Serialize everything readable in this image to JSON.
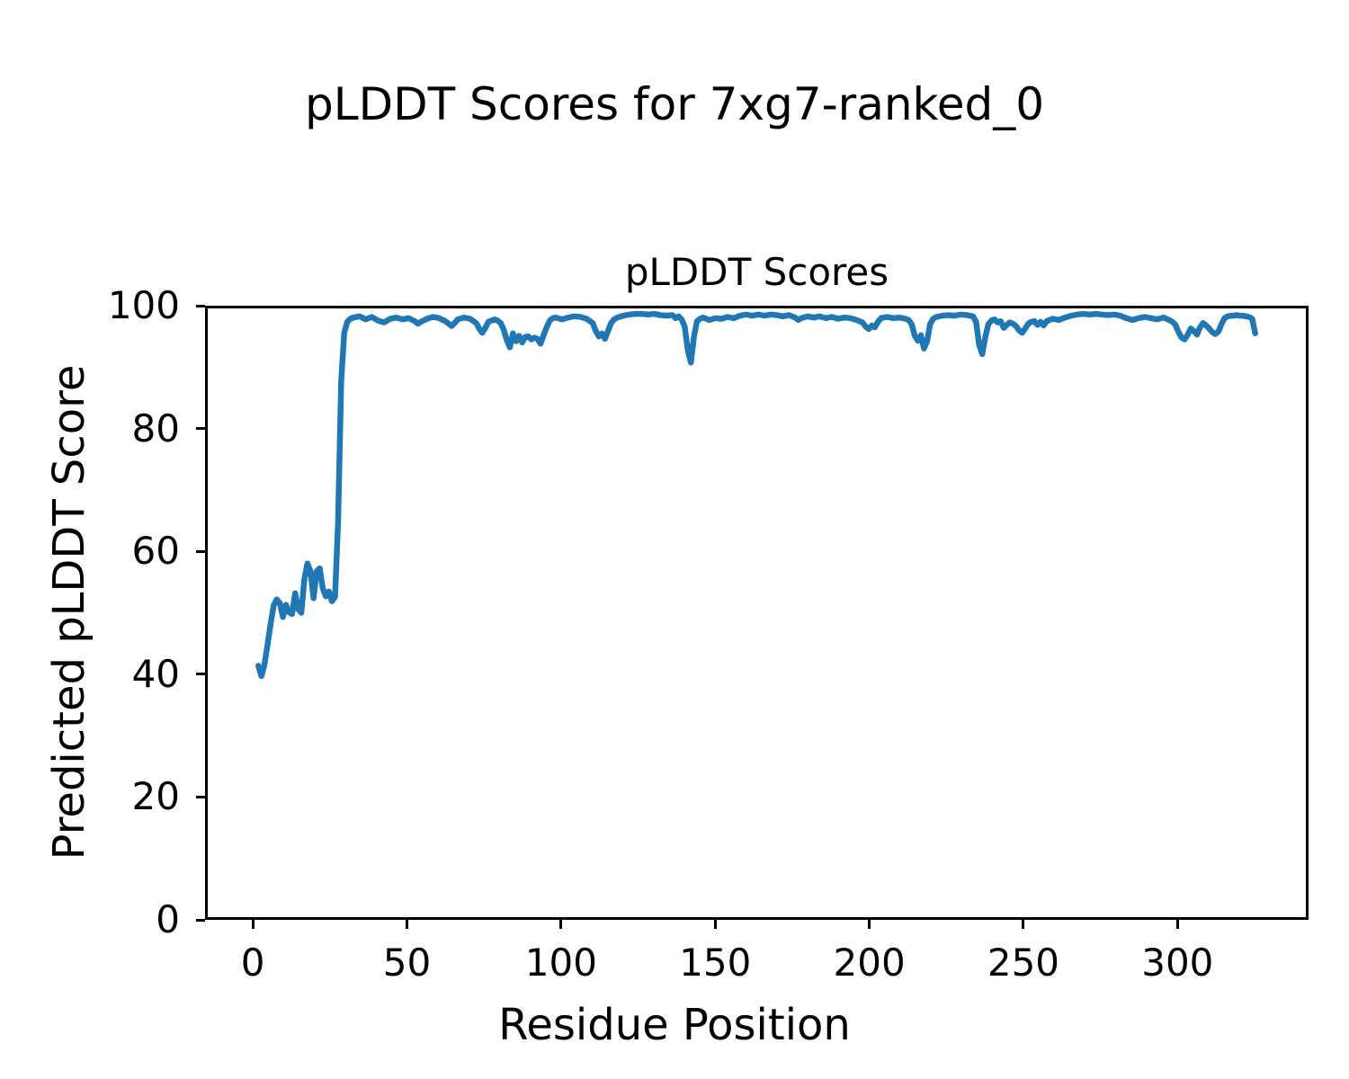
{
  "figure": {
    "title": "pLDDT Scores for 7xg7-ranked_0",
    "background_color": "#ffffff",
    "text_color": "#000000"
  },
  "chart_data": {
    "type": "line",
    "title": "pLDDT Scores",
    "xlabel": "Residue Position",
    "ylabel": "Predicted pLDDT Score",
    "xlim": [
      -15.5,
      342.5
    ],
    "ylim": [
      0,
      100
    ],
    "xticks": [
      0,
      50,
      100,
      150,
      200,
      250,
      300
    ],
    "yticks": [
      0,
      20,
      40,
      60,
      80,
      100
    ],
    "grid": false,
    "legend_position": "none",
    "line_color": "#1f77b4",
    "line_width": 6.5,
    "series": [
      {
        "name": "pLDDT",
        "x": [
          1,
          2,
          3,
          4,
          5,
          6,
          7,
          8,
          9,
          10,
          11,
          12,
          13,
          14,
          15,
          16,
          17,
          18,
          19,
          20,
          21,
          22,
          23,
          24,
          25,
          26,
          27,
          28,
          29,
          30,
          31,
          32,
          34,
          36,
          38,
          40,
          42,
          44,
          46,
          48,
          50,
          52,
          53,
          54,
          56,
          58,
          60,
          62,
          64,
          65,
          66,
          68,
          70,
          72,
          73,
          74,
          75,
          76,
          78,
          79,
          80,
          81,
          82,
          83,
          84,
          85,
          86,
          87,
          88,
          89,
          90,
          91,
          92,
          93,
          94,
          95,
          96,
          97,
          98,
          100,
          102,
          104,
          106,
          108,
          110,
          111,
          112,
          113,
          114,
          115,
          116,
          117,
          118,
          120,
          122,
          124,
          126,
          128,
          130,
          132,
          134,
          136,
          137,
          138,
          139,
          140,
          141,
          142,
          143,
          144,
          145,
          146,
          148,
          150,
          152,
          154,
          156,
          158,
          160,
          162,
          164,
          166,
          168,
          170,
          172,
          174,
          176,
          177,
          178,
          180,
          182,
          184,
          186,
          188,
          190,
          192,
          194,
          196,
          198,
          199,
          200,
          201,
          202,
          203,
          204,
          206,
          208,
          210,
          212,
          213,
          214,
          215,
          216,
          217,
          218,
          219,
          220,
          221,
          222,
          224,
          226,
          228,
          230,
          232,
          234,
          235,
          236,
          237,
          238,
          239,
          240,
          241,
          242,
          243,
          244,
          245,
          246,
          247,
          248,
          249,
          250,
          251,
          252,
          253,
          254,
          255,
          256,
          257,
          258,
          260,
          262,
          264,
          266,
          268,
          270,
          272,
          274,
          276,
          278,
          280,
          282,
          284,
          286,
          288,
          290,
          292,
          294,
          296,
          298,
          299,
          300,
          301,
          302,
          303,
          304,
          305,
          306,
          307,
          308,
          309,
          310,
          311,
          312,
          313,
          314,
          315,
          316,
          317,
          318,
          319,
          320,
          321,
          322,
          323,
          324,
          325,
          326
        ],
        "y": [
          41.3,
          39.6,
          41.5,
          44.8,
          48.2,
          51.2,
          52.2,
          51.6,
          49.3,
          51.3,
          50.1,
          49.8,
          53.2,
          50.6,
          50.0,
          55.5,
          58.1,
          56.8,
          52.4,
          56.8,
          57.3,
          54.0,
          52.7,
          53.5,
          51.9,
          52.6,
          65.0,
          88.0,
          96.0,
          97.8,
          98.3,
          98.5,
          98.7,
          98.2,
          98.6,
          98.0,
          97.7,
          98.3,
          98.5,
          98.2,
          98.4,
          97.9,
          97.5,
          97.8,
          98.3,
          98.6,
          98.4,
          97.9,
          97.1,
          97.6,
          98.2,
          98.5,
          98.3,
          97.6,
          96.7,
          96.0,
          96.8,
          97.8,
          98.2,
          98.0,
          97.6,
          96.5,
          94.8,
          93.6,
          95.9,
          94.6,
          95.5,
          94.4,
          95.3,
          95.4,
          94.9,
          95.2,
          95.0,
          94.2,
          95.6,
          96.9,
          98.0,
          98.4,
          98.5,
          98.2,
          98.5,
          98.7,
          98.6,
          98.3,
          97.6,
          96.3,
          95.4,
          95.9,
          95.0,
          96.3,
          97.6,
          98.2,
          98.5,
          98.8,
          99.0,
          99.1,
          99.1,
          99.0,
          99.1,
          98.9,
          98.8,
          98.9,
          98.4,
          98.7,
          98.2,
          97.0,
          93.2,
          91.1,
          95.3,
          97.9,
          98.3,
          98.5,
          98.1,
          98.4,
          98.3,
          98.6,
          98.4,
          98.8,
          99.0,
          98.8,
          99.0,
          98.8,
          99.0,
          98.9,
          98.7,
          98.9,
          98.5,
          98.1,
          98.4,
          98.7,
          98.5,
          98.7,
          98.4,
          98.6,
          98.3,
          98.5,
          98.4,
          98.1,
          97.7,
          97.0,
          96.6,
          97.2,
          96.9,
          97.8,
          98.4,
          98.6,
          98.4,
          98.5,
          98.3,
          98.1,
          97.4,
          95.5,
          94.7,
          95.6,
          93.4,
          94.6,
          97.4,
          98.3,
          98.6,
          98.8,
          98.9,
          98.8,
          99.0,
          98.9,
          98.7,
          97.8,
          94.0,
          92.5,
          95.3,
          97.4,
          98.0,
          98.2,
          97.7,
          97.9,
          96.8,
          97.3,
          97.7,
          97.5,
          97.1,
          96.4,
          96.0,
          96.7,
          97.5,
          97.8,
          97.9,
          97.3,
          97.8,
          97.2,
          97.9,
          98.3,
          98.1,
          98.5,
          98.8,
          99.0,
          99.1,
          99.0,
          99.1,
          99.0,
          98.9,
          99.0,
          98.8,
          98.4,
          98.1,
          98.4,
          98.6,
          98.4,
          98.2,
          98.5,
          98.1,
          97.8,
          97.3,
          96.1,
          95.2,
          94.9,
          95.7,
          96.7,
          96.3,
          95.7,
          96.9,
          97.6,
          97.2,
          96.7,
          96.1,
          95.8,
          96.2,
          97.4,
          98.4,
          98.7,
          98.8,
          98.8,
          98.9,
          98.8,
          98.8,
          98.7,
          98.6,
          98.3,
          95.9
        ]
      }
    ]
  }
}
